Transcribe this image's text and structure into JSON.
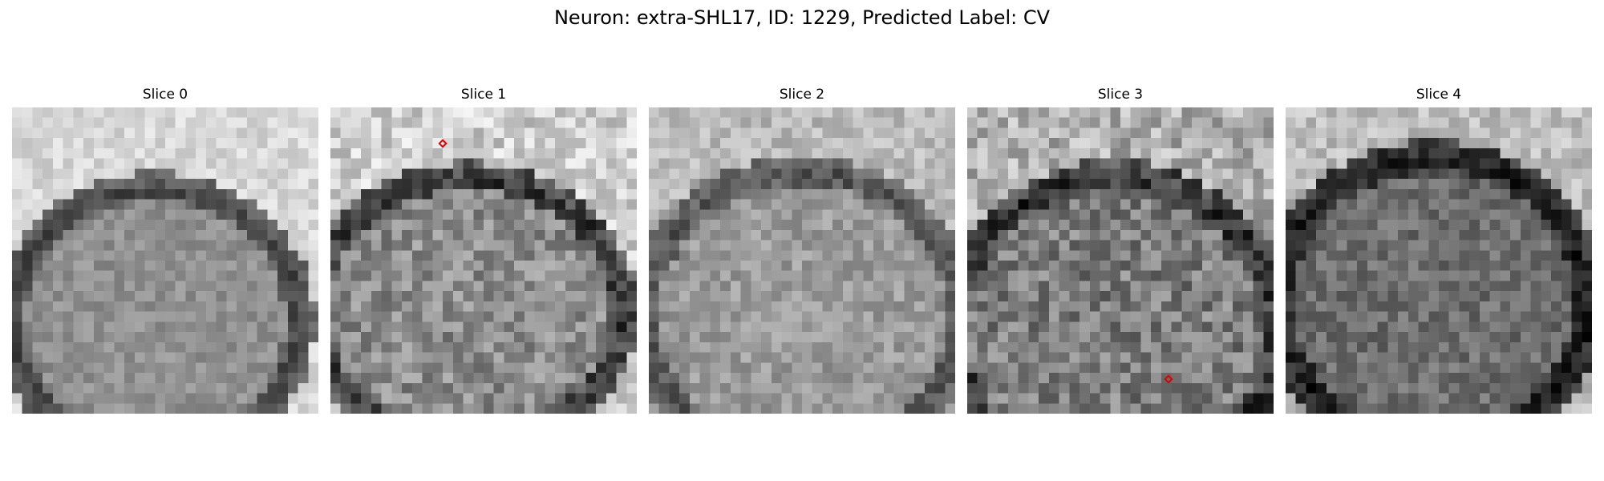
{
  "figure": {
    "title": "Neuron: extra-SHL17, ID: 1229, Predicted Label: CV"
  },
  "colors": {
    "marker": "#e00000",
    "background": "#ffffff"
  },
  "slices": [
    {
      "label": "Slice 0",
      "has_marker": false
    },
    {
      "label": "Slice 1",
      "has_marker": true
    },
    {
      "label": "Slice 2",
      "has_marker": false
    },
    {
      "label": "Slice 3",
      "has_marker": true
    },
    {
      "label": "Slice 4",
      "has_marker": false
    }
  ]
}
